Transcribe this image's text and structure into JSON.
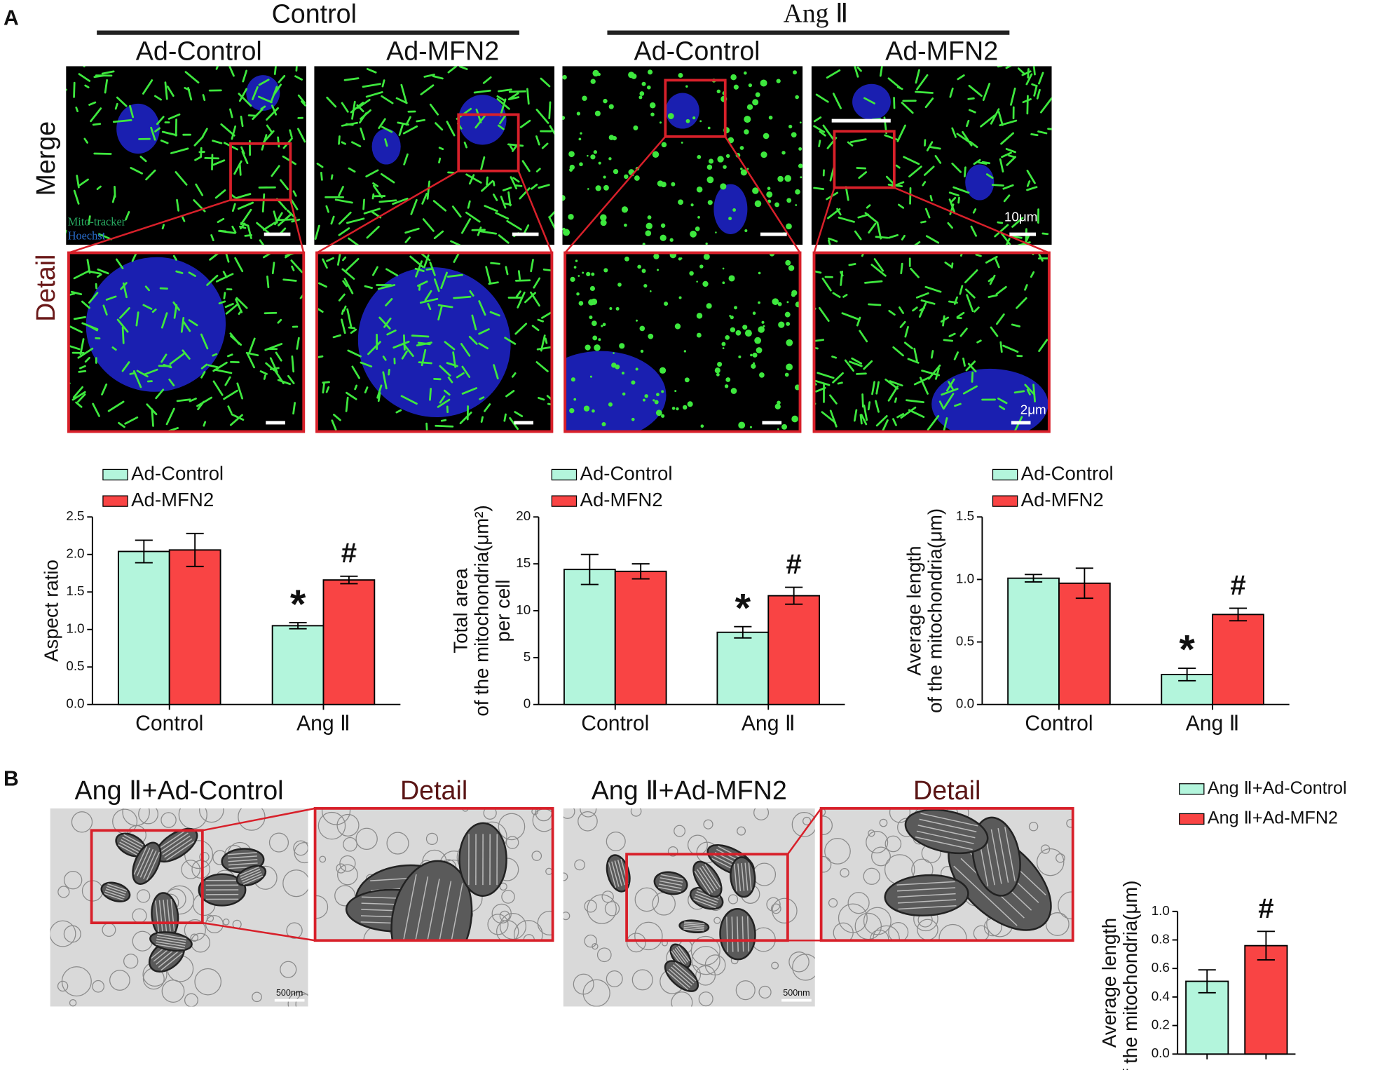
{
  "panel_a": {
    "label": "A",
    "groups": [
      {
        "title": "Control",
        "columns": [
          "Ad-Control",
          "Ad-MFN2"
        ]
      },
      {
        "title": "Ang Ⅱ",
        "columns": [
          "Ad-Control",
          "Ad-MFN2"
        ]
      }
    ],
    "rows": [
      "Merge",
      "Detail"
    ],
    "stain_labels": [
      "Mito-tracker",
      "Hoechst"
    ],
    "scale_bars": [
      "10μm",
      "2μm"
    ]
  },
  "panel_b": {
    "label": "B",
    "images": [
      {
        "title": "Ang Ⅱ+Ad-Control",
        "detail": "Detail",
        "scale_bar": "500nm"
      },
      {
        "title": "Ang Ⅱ+Ad-MFN2",
        "detail": "Detail",
        "scale_bar": "500nm"
      }
    ]
  },
  "chart_data": [
    {
      "type": "bar",
      "ylabel": [
        "Aspect ratio"
      ],
      "categories": [
        "Control",
        "Ang Ⅱ"
      ],
      "series": [
        {
          "name": "Ad-Control",
          "color": "#b3f5dc",
          "values": [
            2.04,
            1.05
          ],
          "errors": [
            0.15,
            0.04
          ]
        },
        {
          "name": "Ad-MFN2",
          "color": "#f94444",
          "values": [
            2.06,
            1.66
          ],
          "errors": [
            0.22,
            0.05
          ]
        }
      ],
      "ylim": [
        0,
        2.5
      ],
      "yticks": [
        {
          "value": 0,
          "label": "0.0"
        },
        0.5,
        {
          "value": 1,
          "label": "1.0"
        },
        1.5,
        {
          "value": 2,
          "label": "2.0"
        },
        2.5
      ],
      "annotations": [
        {
          "text": "*",
          "category": 1,
          "series": 0
        },
        {
          "text": "#",
          "category": 1,
          "series": 1
        }
      ]
    },
    {
      "type": "bar",
      "ylabel": [
        "Total area",
        "of the mitochondria(μm²)",
        "per cell"
      ],
      "categories": [
        "Control",
        "Ang Ⅱ"
      ],
      "series": [
        {
          "name": "Ad-Control",
          "color": "#b3f5dc",
          "values": [
            14.4,
            7.7
          ],
          "errors": [
            1.6,
            0.6
          ]
        },
        {
          "name": "Ad-MFN2",
          "color": "#f94444",
          "values": [
            14.2,
            11.6
          ],
          "errors": [
            0.8,
            0.9
          ]
        }
      ],
      "ylim": [
        0,
        20
      ],
      "yticks": [
        0,
        5,
        10,
        15,
        20
      ],
      "annotations": [
        {
          "text": "*",
          "category": 1,
          "series": 0
        },
        {
          "text": "#",
          "category": 1,
          "series": 1
        }
      ]
    },
    {
      "type": "bar",
      "ylabel": [
        "Average length",
        "of the mitochondria(μm)"
      ],
      "categories": [
        "Control",
        "Ang Ⅱ"
      ],
      "series": [
        {
          "name": "Ad-Control",
          "color": "#b3f5dc",
          "values": [
            1.01,
            0.24
          ],
          "errors": [
            0.03,
            0.05
          ]
        },
        {
          "name": "Ad-MFN2",
          "color": "#f94444",
          "values": [
            0.97,
            0.72
          ],
          "errors": [
            0.12,
            0.05
          ]
        }
      ],
      "ylim": [
        0,
        1.5
      ],
      "yticks": [
        {
          "value": 0,
          "label": "0.0"
        },
        0.5,
        {
          "value": 1,
          "label": "1.0"
        },
        1.5
      ],
      "annotations": [
        {
          "text": "*",
          "category": 1,
          "series": 0
        },
        {
          "text": "#",
          "category": 1,
          "series": 1
        }
      ]
    },
    {
      "type": "bar",
      "ylabel": [
        "Average length",
        "of the mitochondria(μm)"
      ],
      "categories": [
        null,
        null
      ],
      "series": [
        {
          "name": "Ang Ⅱ+Ad-Control",
          "color": "#b3f5dc",
          "values": [
            0.51,
            null
          ],
          "errors": [
            0.08,
            null
          ]
        },
        {
          "name": "Ang Ⅱ+Ad-MFN2",
          "color": "#f94444",
          "values": [
            null,
            0.76
          ],
          "errors": [
            null,
            0.1
          ]
        }
      ],
      "ylim": [
        0,
        1
      ],
      "yticks": [
        {
          "value": 0,
          "label": "0.0"
        },
        0.2,
        0.4,
        0.6,
        0.8,
        {
          "value": 1,
          "label": "1.0"
        }
      ],
      "annotations": [
        {
          "text": "#",
          "category": 1,
          "series": 1
        }
      ]
    }
  ]
}
